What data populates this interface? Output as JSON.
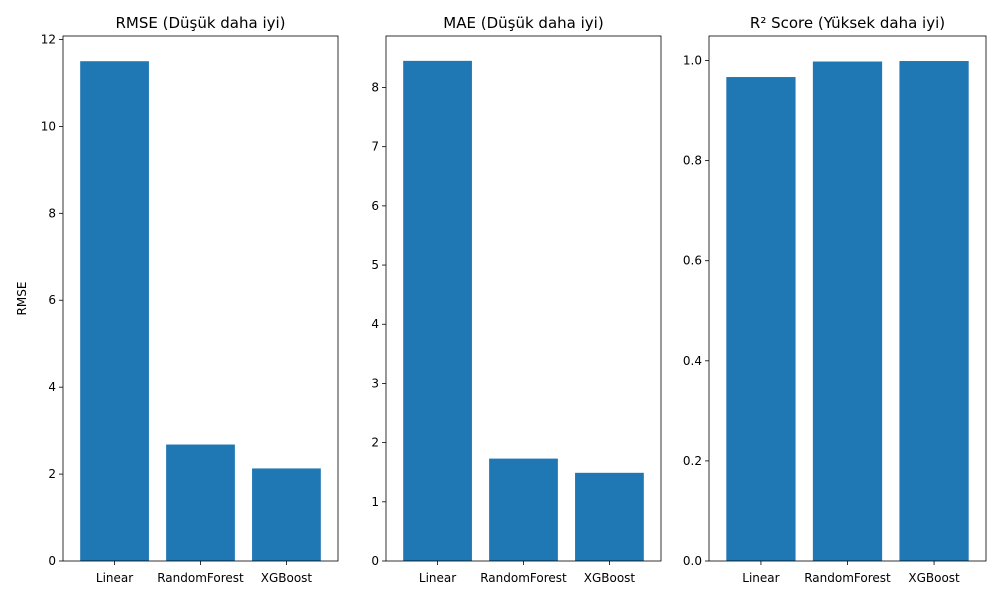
{
  "chart_data": [
    {
      "type": "bar",
      "title": "RMSE (Düşük daha iyi)",
      "xlabel": "",
      "ylabel": "RMSE",
      "categories": [
        "Linear",
        "RandomForest",
        "XGBoost"
      ],
      "values": [
        11.5,
        2.68,
        2.13
      ],
      "ylim": [
        0,
        12.08
      ],
      "yticks": [
        0,
        2,
        4,
        6,
        8,
        10,
        12
      ],
      "grid": false,
      "bar_color": "#1f77b4"
    },
    {
      "type": "bar",
      "title": "MAE (Düşük daha iyi)",
      "xlabel": "",
      "ylabel": "",
      "categories": [
        "Linear",
        "RandomForest",
        "XGBoost"
      ],
      "values": [
        8.45,
        1.73,
        1.49
      ],
      "ylim": [
        0,
        8.87
      ],
      "yticks": [
        0,
        1,
        2,
        3,
        4,
        5,
        6,
        7,
        8
      ],
      "grid": false,
      "bar_color": "#1f77b4"
    },
    {
      "type": "bar",
      "title": "R² Score (Yüksek daha iyi)",
      "xlabel": "",
      "ylabel": "",
      "categories": [
        "Linear",
        "RandomForest",
        "XGBoost"
      ],
      "values": [
        0.967,
        0.998,
        0.999
      ],
      "ylim": [
        0,
        1.049
      ],
      "yticks": [
        "0.0",
        "0.2",
        "0.4",
        "0.6",
        "0.8",
        "1.0"
      ],
      "grid": false,
      "bar_color": "#1f77b4"
    }
  ]
}
